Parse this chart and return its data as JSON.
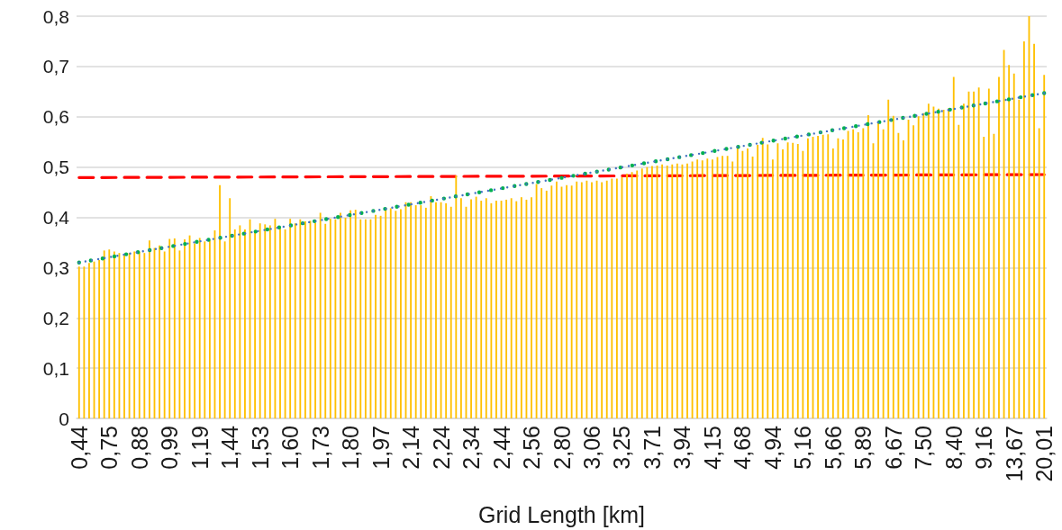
{
  "chart_data": {
    "type": "bar",
    "xlabel": "Grid Length [km]",
    "categories": [
      "0,44",
      null,
      null,
      null,
      null,
      null,
      "0,75",
      null,
      null,
      null,
      null,
      null,
      "0,88",
      null,
      null,
      null,
      null,
      null,
      "0,99",
      null,
      null,
      null,
      null,
      null,
      "1,19",
      null,
      null,
      null,
      null,
      null,
      "1,44",
      null,
      null,
      null,
      null,
      null,
      "1,53",
      null,
      null,
      null,
      null,
      null,
      "1,60",
      null,
      null,
      null,
      null,
      null,
      "1,73",
      null,
      null,
      null,
      null,
      null,
      "1,80",
      null,
      null,
      null,
      null,
      null,
      "1,97",
      null,
      null,
      null,
      null,
      null,
      "2,14",
      null,
      null,
      null,
      null,
      null,
      "2,24",
      null,
      null,
      null,
      null,
      null,
      "2,34",
      null,
      null,
      null,
      null,
      null,
      "2,44",
      null,
      null,
      null,
      null,
      null,
      "2,56",
      null,
      null,
      null,
      null,
      null,
      "2,80",
      null,
      null,
      null,
      null,
      null,
      "3,06",
      null,
      null,
      null,
      null,
      null,
      "3,25",
      null,
      null,
      null,
      null,
      null,
      "3,71",
      null,
      null,
      null,
      null,
      null,
      "3,94",
      null,
      null,
      null,
      null,
      null,
      "4,15",
      null,
      null,
      null,
      null,
      null,
      "4,68",
      null,
      null,
      null,
      null,
      null,
      "4,94",
      null,
      null,
      null,
      null,
      null,
      "5,16",
      null,
      null,
      null,
      null,
      null,
      "5,66",
      null,
      null,
      null,
      null,
      null,
      "5,89",
      null,
      null,
      null,
      null,
      null,
      "6,67",
      null,
      null,
      null,
      null,
      null,
      "7,50",
      null,
      null,
      null,
      null,
      null,
      "8,40",
      null,
      null,
      null,
      null,
      null,
      "9,16",
      null,
      null,
      null,
      null,
      null,
      "13,67",
      null,
      null,
      null,
      null,
      null,
      "20,01"
    ],
    "series": [
      {
        "color": "#ffc000",
        "values": [
          0.302,
          0.302,
          0.309,
          0.312,
          0.315,
          0.334,
          0.336,
          0.332,
          0.329,
          0.326,
          0.329,
          0.332,
          0.332,
          0.329,
          0.354,
          0.339,
          0.344,
          0.332,
          0.357,
          0.358,
          0.334,
          0.356,
          0.364,
          0.348,
          0.359,
          0.352,
          0.354,
          0.374,
          0.464,
          0.352,
          0.438,
          0.376,
          0.384,
          0.376,
          0.396,
          0.369,
          0.388,
          0.386,
          0.384,
          0.397,
          0.377,
          0.376,
          0.397,
          0.388,
          0.396,
          0.392,
          0.393,
          0.389,
          0.409,
          0.387,
          0.397,
          0.396,
          0.409,
          0.399,
          0.414,
          0.415,
          0.396,
          0.396,
          0.396,
          0.405,
          0.403,
          0.415,
          0.418,
          0.413,
          0.416,
          0.43,
          0.43,
          0.424,
          0.424,
          0.419,
          0.442,
          0.43,
          0.43,
          0.428,
          0.421,
          0.483,
          0.438,
          0.421,
          0.436,
          0.441,
          0.433,
          0.438,
          0.428,
          0.433,
          0.433,
          0.435,
          0.438,
          0.432,
          0.44,
          0.435,
          0.44,
          0.466,
          0.458,
          0.453,
          0.463,
          0.471,
          0.461,
          0.464,
          0.463,
          0.471,
          0.47,
          0.473,
          0.47,
          0.473,
          0.47,
          0.473,
          0.477,
          0.477,
          0.48,
          0.487,
          0.49,
          0.493,
          0.497,
          0.5,
          0.502,
          0.503,
          0.505,
          0.503,
          0.505,
          0.507,
          0.505,
          0.507,
          0.511,
          0.515,
          0.513,
          0.517,
          0.515,
          0.52,
          0.522,
          0.522,
          0.511,
          0.537,
          0.532,
          0.537,
          0.521,
          0.544,
          0.558,
          0.545,
          0.515,
          0.547,
          0.535,
          0.549,
          0.548,
          0.546,
          0.532,
          0.557,
          0.56,
          0.562,
          0.564,
          0.565,
          0.537,
          0.557,
          0.555,
          0.572,
          0.575,
          0.569,
          0.577,
          0.603,
          0.547,
          0.587,
          0.575,
          0.634,
          0.602,
          0.568,
          0.553,
          0.594,
          0.583,
          0.601,
          0.607,
          0.626,
          0.62,
          0.616,
          0.614,
          0.617,
          0.679,
          0.584,
          0.626,
          0.65,
          0.65,
          0.658,
          0.56,
          0.656,
          0.566,
          0.679,
          0.733,
          0.703,
          0.686,
          0.634,
          0.75,
          0.8,
          0.745,
          0.577,
          0.683
        ]
      },
      {
        "type": "line",
        "x": [
          "0,44",
          "20,01"
        ],
        "values": [
          0.479,
          0.485
        ],
        "color": "#ff0000",
        "line_style": "dashed"
      },
      {
        "type": "line",
        "x": [
          "0,44",
          "20,01"
        ],
        "values": [
          0.31,
          0.647
        ],
        "color": "#4472c4",
        "line_style": "dotted"
      },
      {
        "type": "line",
        "x": [
          "0,44",
          "20,01"
        ],
        "values": [
          0.31,
          0.647
        ],
        "color": "#00b050",
        "line_style": "dotted"
      }
    ],
    "ylim": [
      0,
      0.8
    ],
    "yticks": [
      0,
      {
        "value": 0.1,
        "label": "0,1"
      },
      {
        "value": 0.2,
        "label": "0,2"
      },
      {
        "value": 0.3,
        "label": "0,3"
      },
      {
        "value": 0.4,
        "label": "0,4"
      },
      {
        "value": 0.5,
        "label": "0,5"
      },
      {
        "value": 0.6,
        "label": "0,6"
      },
      {
        "value": 0.7,
        "label": "0,7"
      },
      {
        "value": 0.8,
        "label": "0,8"
      }
    ],
    "grid": "y"
  }
}
